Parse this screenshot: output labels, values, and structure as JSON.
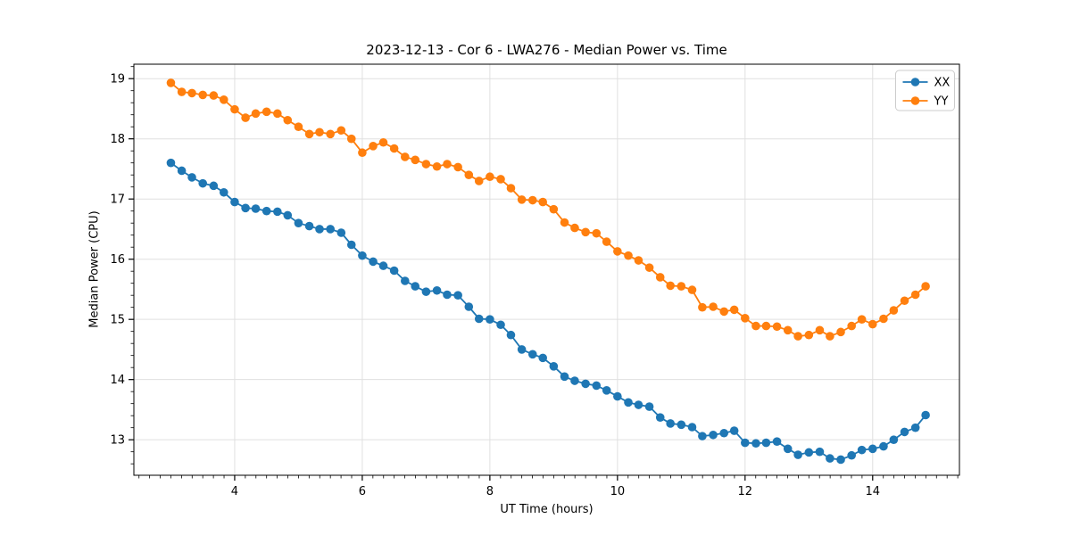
{
  "figure": {
    "title": "2023-12-13 - Cor 6 - LWA276 - Median Power vs. Time",
    "xlabel": "UT Time (hours)",
    "ylabel": "Median Power (CPU)",
    "background": "#ffffff"
  },
  "chart_data": {
    "type": "line",
    "title": "2023-12-13 - Cor 6 - LWA276 - Median Power vs. Time",
    "xlabel": "UT Time (hours)",
    "ylabel": "Median Power (CPU)",
    "xlim": [
      2.42,
      15.36
    ],
    "ylim": [
      12.41,
      19.24
    ],
    "x_ticks": [
      4,
      6,
      8,
      10,
      12,
      14
    ],
    "y_ticks": [
      13,
      14,
      15,
      16,
      17,
      18,
      19
    ],
    "x_minor_step": 0.16667,
    "y_minor_step": 0.2,
    "grid": true,
    "grid_color": "#e0e0e0",
    "marker": "circle",
    "legend": {
      "position": "upper right",
      "entries": [
        "XX",
        "YY"
      ]
    },
    "x": [
      3.0,
      3.17,
      3.33,
      3.5,
      3.67,
      3.83,
      4.0,
      4.17,
      4.33,
      4.5,
      4.67,
      4.83,
      5.0,
      5.17,
      5.33,
      5.5,
      5.67,
      5.83,
      6.0,
      6.17,
      6.33,
      6.5,
      6.67,
      6.83,
      7.0,
      7.17,
      7.33,
      7.5,
      7.67,
      7.83,
      8.0,
      8.17,
      8.33,
      8.5,
      8.67,
      8.83,
      9.0,
      9.17,
      9.33,
      9.5,
      9.67,
      9.83,
      10.0,
      10.17,
      10.33,
      10.5,
      10.67,
      10.83,
      11.0,
      11.17,
      11.33,
      11.5,
      11.67,
      11.83,
      12.0,
      12.17,
      12.33,
      12.5,
      12.67,
      12.83,
      13.0,
      13.17,
      13.33,
      13.5,
      13.67,
      13.83,
      14.0,
      14.17,
      14.33,
      14.5,
      14.67,
      14.83
    ],
    "series": [
      {
        "name": "XX",
        "color": "#1f77b4",
        "values": [
          17.6,
          17.47,
          17.36,
          17.26,
          17.22,
          17.11,
          16.95,
          16.85,
          16.84,
          16.8,
          16.79,
          16.73,
          16.6,
          16.55,
          16.5,
          16.5,
          16.44,
          16.24,
          16.06,
          15.96,
          15.89,
          15.81,
          15.64,
          15.55,
          15.46,
          15.48,
          15.41,
          15.4,
          15.21,
          15.01,
          15.0,
          14.91,
          14.74,
          14.5,
          14.42,
          14.36,
          14.22,
          14.05,
          13.98,
          13.93,
          13.9,
          13.82,
          13.72,
          13.62,
          13.58,
          13.55,
          13.37,
          13.27,
          13.25,
          13.21,
          13.06,
          13.08,
          13.11,
          13.15,
          12.95,
          12.94,
          12.95,
          12.97,
          12.85,
          12.75,
          12.79,
          12.8,
          12.69,
          12.67,
          12.74,
          12.83,
          12.85,
          12.89,
          13.0,
          13.13,
          13.2,
          13.41
        ]
      },
      {
        "name": "YY",
        "color": "#ff7f0e",
        "values": [
          18.93,
          18.78,
          18.76,
          18.73,
          18.72,
          18.65,
          18.49,
          18.35,
          18.42,
          18.45,
          18.42,
          18.31,
          18.2,
          18.08,
          18.11,
          18.08,
          18.14,
          18.0,
          17.77,
          17.88,
          17.94,
          17.84,
          17.7,
          17.65,
          17.58,
          17.54,
          17.58,
          17.53,
          17.4,
          17.3,
          17.37,
          17.33,
          17.18,
          16.99,
          16.98,
          16.95,
          16.83,
          16.61,
          16.52,
          16.45,
          16.43,
          16.29,
          16.13,
          16.06,
          15.98,
          15.86,
          15.7,
          15.56,
          15.55,
          15.49,
          15.2,
          15.21,
          15.13,
          15.16,
          15.02,
          14.89,
          14.89,
          14.88,
          14.82,
          14.72,
          14.74,
          14.82,
          14.72,
          14.79,
          14.89,
          15.0,
          14.92,
          15.01,
          15.15,
          15.31,
          15.41,
          15.55
        ]
      }
    ]
  }
}
